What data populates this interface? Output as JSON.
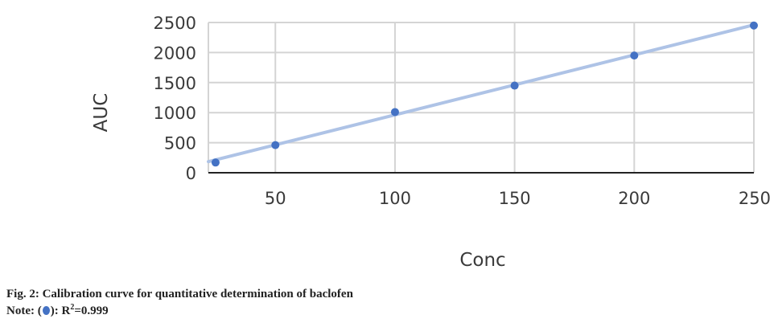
{
  "chart_data": {
    "type": "scatter",
    "xlabel": "Conc",
    "ylabel": "AUC",
    "xlim": [
      22,
      250
    ],
    "ylim": [
      0,
      2500
    ],
    "x_ticks": [
      50,
      100,
      150,
      200,
      250
    ],
    "y_ticks": [
      0,
      500,
      1000,
      1500,
      2000,
      2500
    ],
    "grid": true,
    "series": [
      {
        "x": [
          25,
          50,
          100,
          150,
          200,
          250
        ],
        "y": [
          170,
          460,
          1010,
          1450,
          1950,
          2450
        ],
        "color": "#4472c4"
      }
    ],
    "trendline": {
      "type": "linear",
      "x": [
        22,
        250
      ],
      "y": [
        185,
        2460
      ],
      "color": "#aec3e6"
    }
  },
  "caption": {
    "title": "Fig. 2: Calibration curve for quantitative determination of baclofen",
    "note_prefix": "Note: (",
    "note_marker_color": "#4472c4",
    "note_mid": "): R",
    "note_sup": "2",
    "note_suffix": "=0.999"
  }
}
